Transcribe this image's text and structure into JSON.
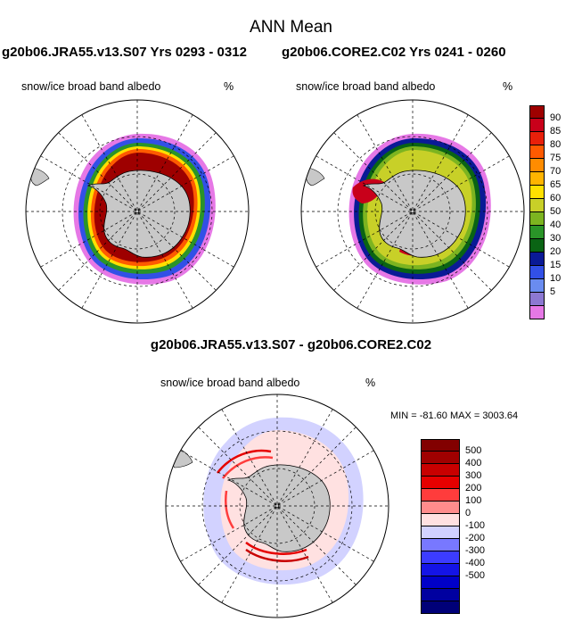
{
  "title": "ANN Mean",
  "panels": [
    {
      "case_title": "g20b06.JRA55.v13.S07  Yrs 0293 - 0312",
      "variable": "snow/ice broad band albedo",
      "units": "%"
    },
    {
      "case_title": "g20b06.CORE2.C02  Yrs 0241 - 0260",
      "variable": "snow/ice broad band albedo",
      "units": "%"
    }
  ],
  "difference": {
    "title": "g20b06.JRA55.v13.S07 - g20b06.CORE2.C02",
    "variable": "snow/ice broad band albedo",
    "units": "%",
    "min_max": "MIN = -81.60 MAX = 3003.64"
  },
  "colorbar_main": {
    "labels": [
      "90",
      "85",
      "80",
      "75",
      "70",
      "65",
      "60",
      "50",
      "40",
      "30",
      "20",
      "15",
      "10",
      "5"
    ],
    "colors": [
      "#9e0000",
      "#c8001a",
      "#e8200a",
      "#ff5a00",
      "#ff8c00",
      "#ffb400",
      "#ffe000",
      "#c8d028",
      "#7cb420",
      "#2a9428",
      "#0a6414",
      "#0a1a96",
      "#3250e6",
      "#6a8cf0",
      "#8c78d2",
      "#e678e6"
    ]
  },
  "colorbar_diff": {
    "labels": [
      "500",
      "400",
      "300",
      "200",
      "100",
      "0",
      "-100",
      "-200",
      "-300",
      "-400",
      "-500"
    ],
    "colors": [
      "#820000",
      "#a00000",
      "#c80000",
      "#e60000",
      "#ff3c3c",
      "#ff8c8c",
      "#ffe1e1",
      "#d2d2ff",
      "#7878ff",
      "#3c3cff",
      "#1414e6",
      "#0000c8",
      "#0000a0",
      "#000078"
    ]
  },
  "colors": {
    "land": "#c8c8c8",
    "ocean": "#ffffff",
    "border": "#000000"
  }
}
